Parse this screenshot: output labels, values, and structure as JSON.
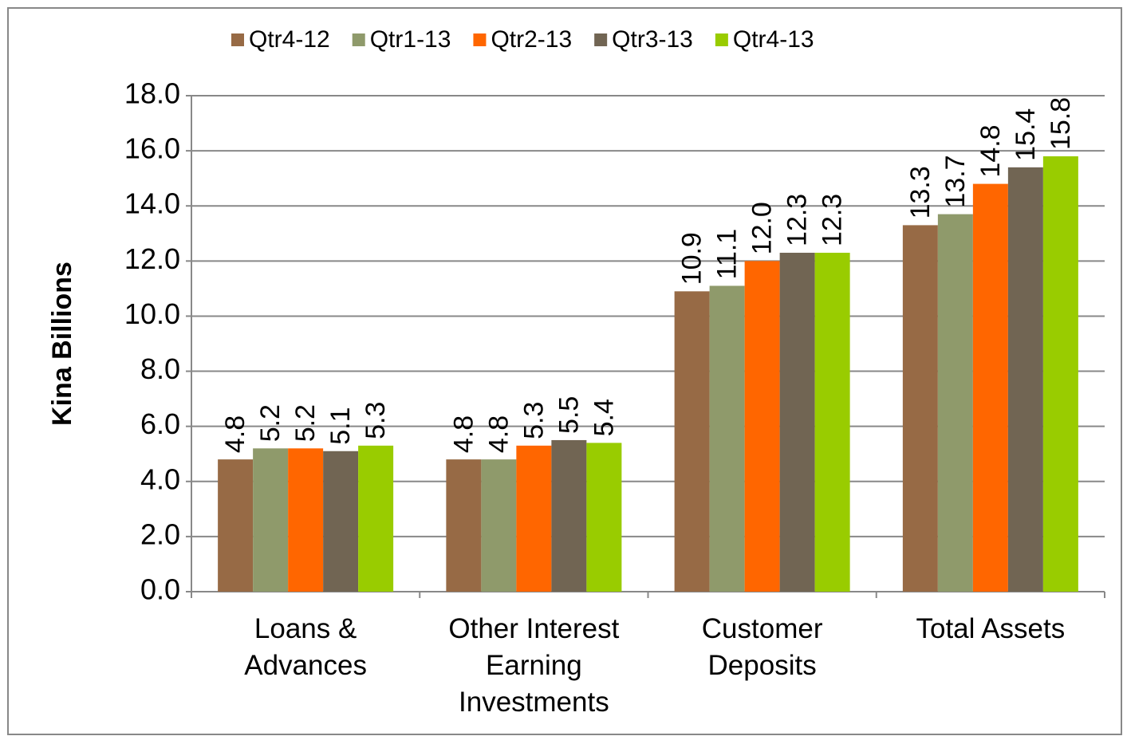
{
  "chart_data": {
    "type": "bar",
    "y_axis_label": "Kina Billions",
    "categories": [
      "Loans & Advances",
      "Other Interest Earning Investments",
      "Customer Deposits",
      "Total Assets"
    ],
    "series": [
      {
        "name": "Qtr4-12",
        "color": "#976a45",
        "values": [
          4.8,
          4.8,
          10.9,
          13.3
        ],
        "value_labels": [
          "4.8",
          "4.8",
          "10.9",
          "13.3"
        ]
      },
      {
        "name": "Qtr1-13",
        "color": "#8f9a6b",
        "values": [
          5.2,
          4.8,
          11.1,
          13.7
        ],
        "value_labels": [
          "5.2",
          "4.8",
          "11.1",
          "13.7"
        ]
      },
      {
        "name": "Qtr2-13",
        "color": "#ff6600",
        "values": [
          5.2,
          5.3,
          12.0,
          14.8
        ],
        "value_labels": [
          "5.2",
          "5.3",
          "12.0",
          "14.8"
        ]
      },
      {
        "name": "Qtr3-13",
        "color": "#716553",
        "values": [
          5.1,
          5.5,
          12.3,
          15.4
        ],
        "value_labels": [
          "5.1",
          "5.5",
          "12.3",
          "15.4"
        ]
      },
      {
        "name": "Qtr4-13",
        "color": "#99cc00",
        "values": [
          5.3,
          5.4,
          12.3,
          15.8
        ],
        "value_labels": [
          "5.3",
          "5.4",
          "12.3",
          "15.8"
        ]
      }
    ],
    "ylim": [
      0,
      18
    ],
    "yticks": [
      {
        "value": 0,
        "label": "0.0"
      },
      {
        "value": 2,
        "label": "2.0"
      },
      {
        "value": 4,
        "label": "4.0"
      },
      {
        "value": 6,
        "label": "6.0"
      },
      {
        "value": 8,
        "label": "8.0"
      },
      {
        "value": 10,
        "label": "10.0"
      },
      {
        "value": 12,
        "label": "12.0"
      },
      {
        "value": 14,
        "label": "14.0"
      },
      {
        "value": 16,
        "label": "16.0"
      },
      {
        "value": 18,
        "label": "18.0"
      }
    ],
    "grid": true,
    "legend": "top"
  }
}
